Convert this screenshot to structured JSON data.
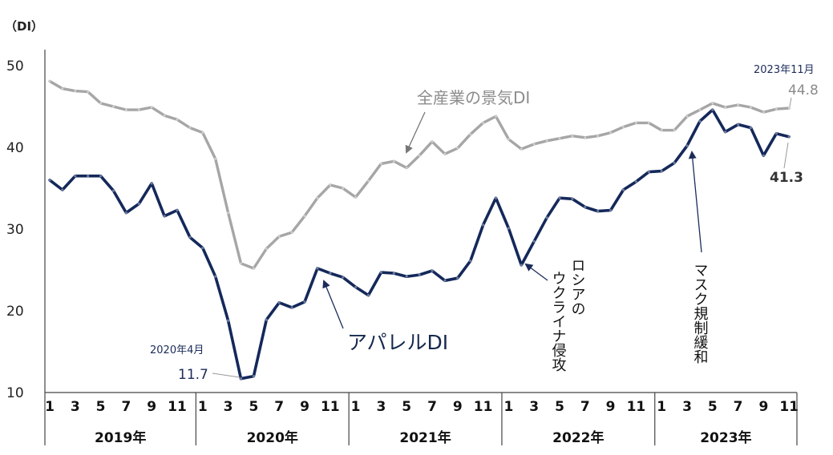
{
  "chart_data": {
    "type": "line",
    "unit_label": "（DI）",
    "ylim": [
      10,
      50
    ],
    "yticks": [
      "10",
      "20",
      "30",
      "40",
      "50"
    ],
    "month_ticks": [
      "1",
      "3",
      "5",
      "7",
      "9",
      "11",
      "1",
      "3",
      "5",
      "7",
      "9",
      "11",
      "1",
      "3",
      "5",
      "7",
      "9",
      "11",
      "1",
      "3",
      "5",
      "7",
      "9",
      "11",
      "1",
      "3",
      "5",
      "7",
      "9",
      "11"
    ],
    "years": [
      "2019年",
      "2020年",
      "2021年",
      "2022年",
      "2023年"
    ],
    "series": [
      {
        "name": "全産業の景気DI",
        "color": "#a6a6a6",
        "values": [
          48.1,
          47.2,
          46.9,
          46.8,
          45.4,
          45.0,
          44.6,
          44.6,
          44.9,
          43.9,
          43.4,
          42.4,
          41.8,
          38.6,
          32.0,
          25.8,
          25.2,
          27.6,
          29.1,
          29.6,
          31.6,
          33.8,
          35.4,
          35.0,
          33.9,
          35.9,
          38.0,
          38.3,
          37.5,
          39.0,
          40.7,
          39.2,
          39.9,
          41.6,
          43.0,
          43.8,
          41.0,
          39.8,
          40.4,
          40.8,
          41.1,
          41.4,
          41.2,
          41.4,
          41.8,
          42.5,
          43.0,
          43.0,
          42.1,
          42.1,
          43.8,
          44.6,
          45.4,
          44.9,
          45.2,
          44.9,
          44.3,
          44.7,
          44.8
        ]
      },
      {
        "name": "アパレルDI",
        "color": "#14285a",
        "values": [
          36.0,
          34.8,
          36.5,
          36.5,
          36.5,
          34.7,
          32.0,
          33.1,
          35.6,
          31.6,
          32.3,
          29.0,
          27.7,
          24.2,
          18.8,
          11.7,
          12.0,
          18.9,
          21.0,
          20.4,
          21.1,
          25.2,
          24.6,
          24.1,
          22.9,
          21.9,
          24.7,
          24.6,
          24.2,
          24.4,
          24.9,
          23.7,
          24.0,
          26.1,
          30.5,
          33.8,
          30.1,
          25.6,
          28.5,
          31.4,
          33.8,
          33.7,
          32.7,
          32.2,
          32.3,
          34.8,
          35.8,
          37.0,
          37.1,
          38.1,
          40.2,
          43.2,
          44.6,
          41.9,
          42.8,
          42.4,
          39.0,
          41.7,
          41.3
        ]
      }
    ]
  },
  "annotations": {
    "series_label_all": "全産業の景気DI",
    "series_label_apparel": "アパレルDI",
    "min_date": "2020年4月",
    "min_value": "11.7",
    "last_date": "2023年11月",
    "last_value_all": "44.8",
    "last_value_apparel": "41.3",
    "event_ukraine": [
      "ロシアの",
      "ウクライナ侵攻"
    ],
    "event_mask": "マスク規制緩和"
  }
}
